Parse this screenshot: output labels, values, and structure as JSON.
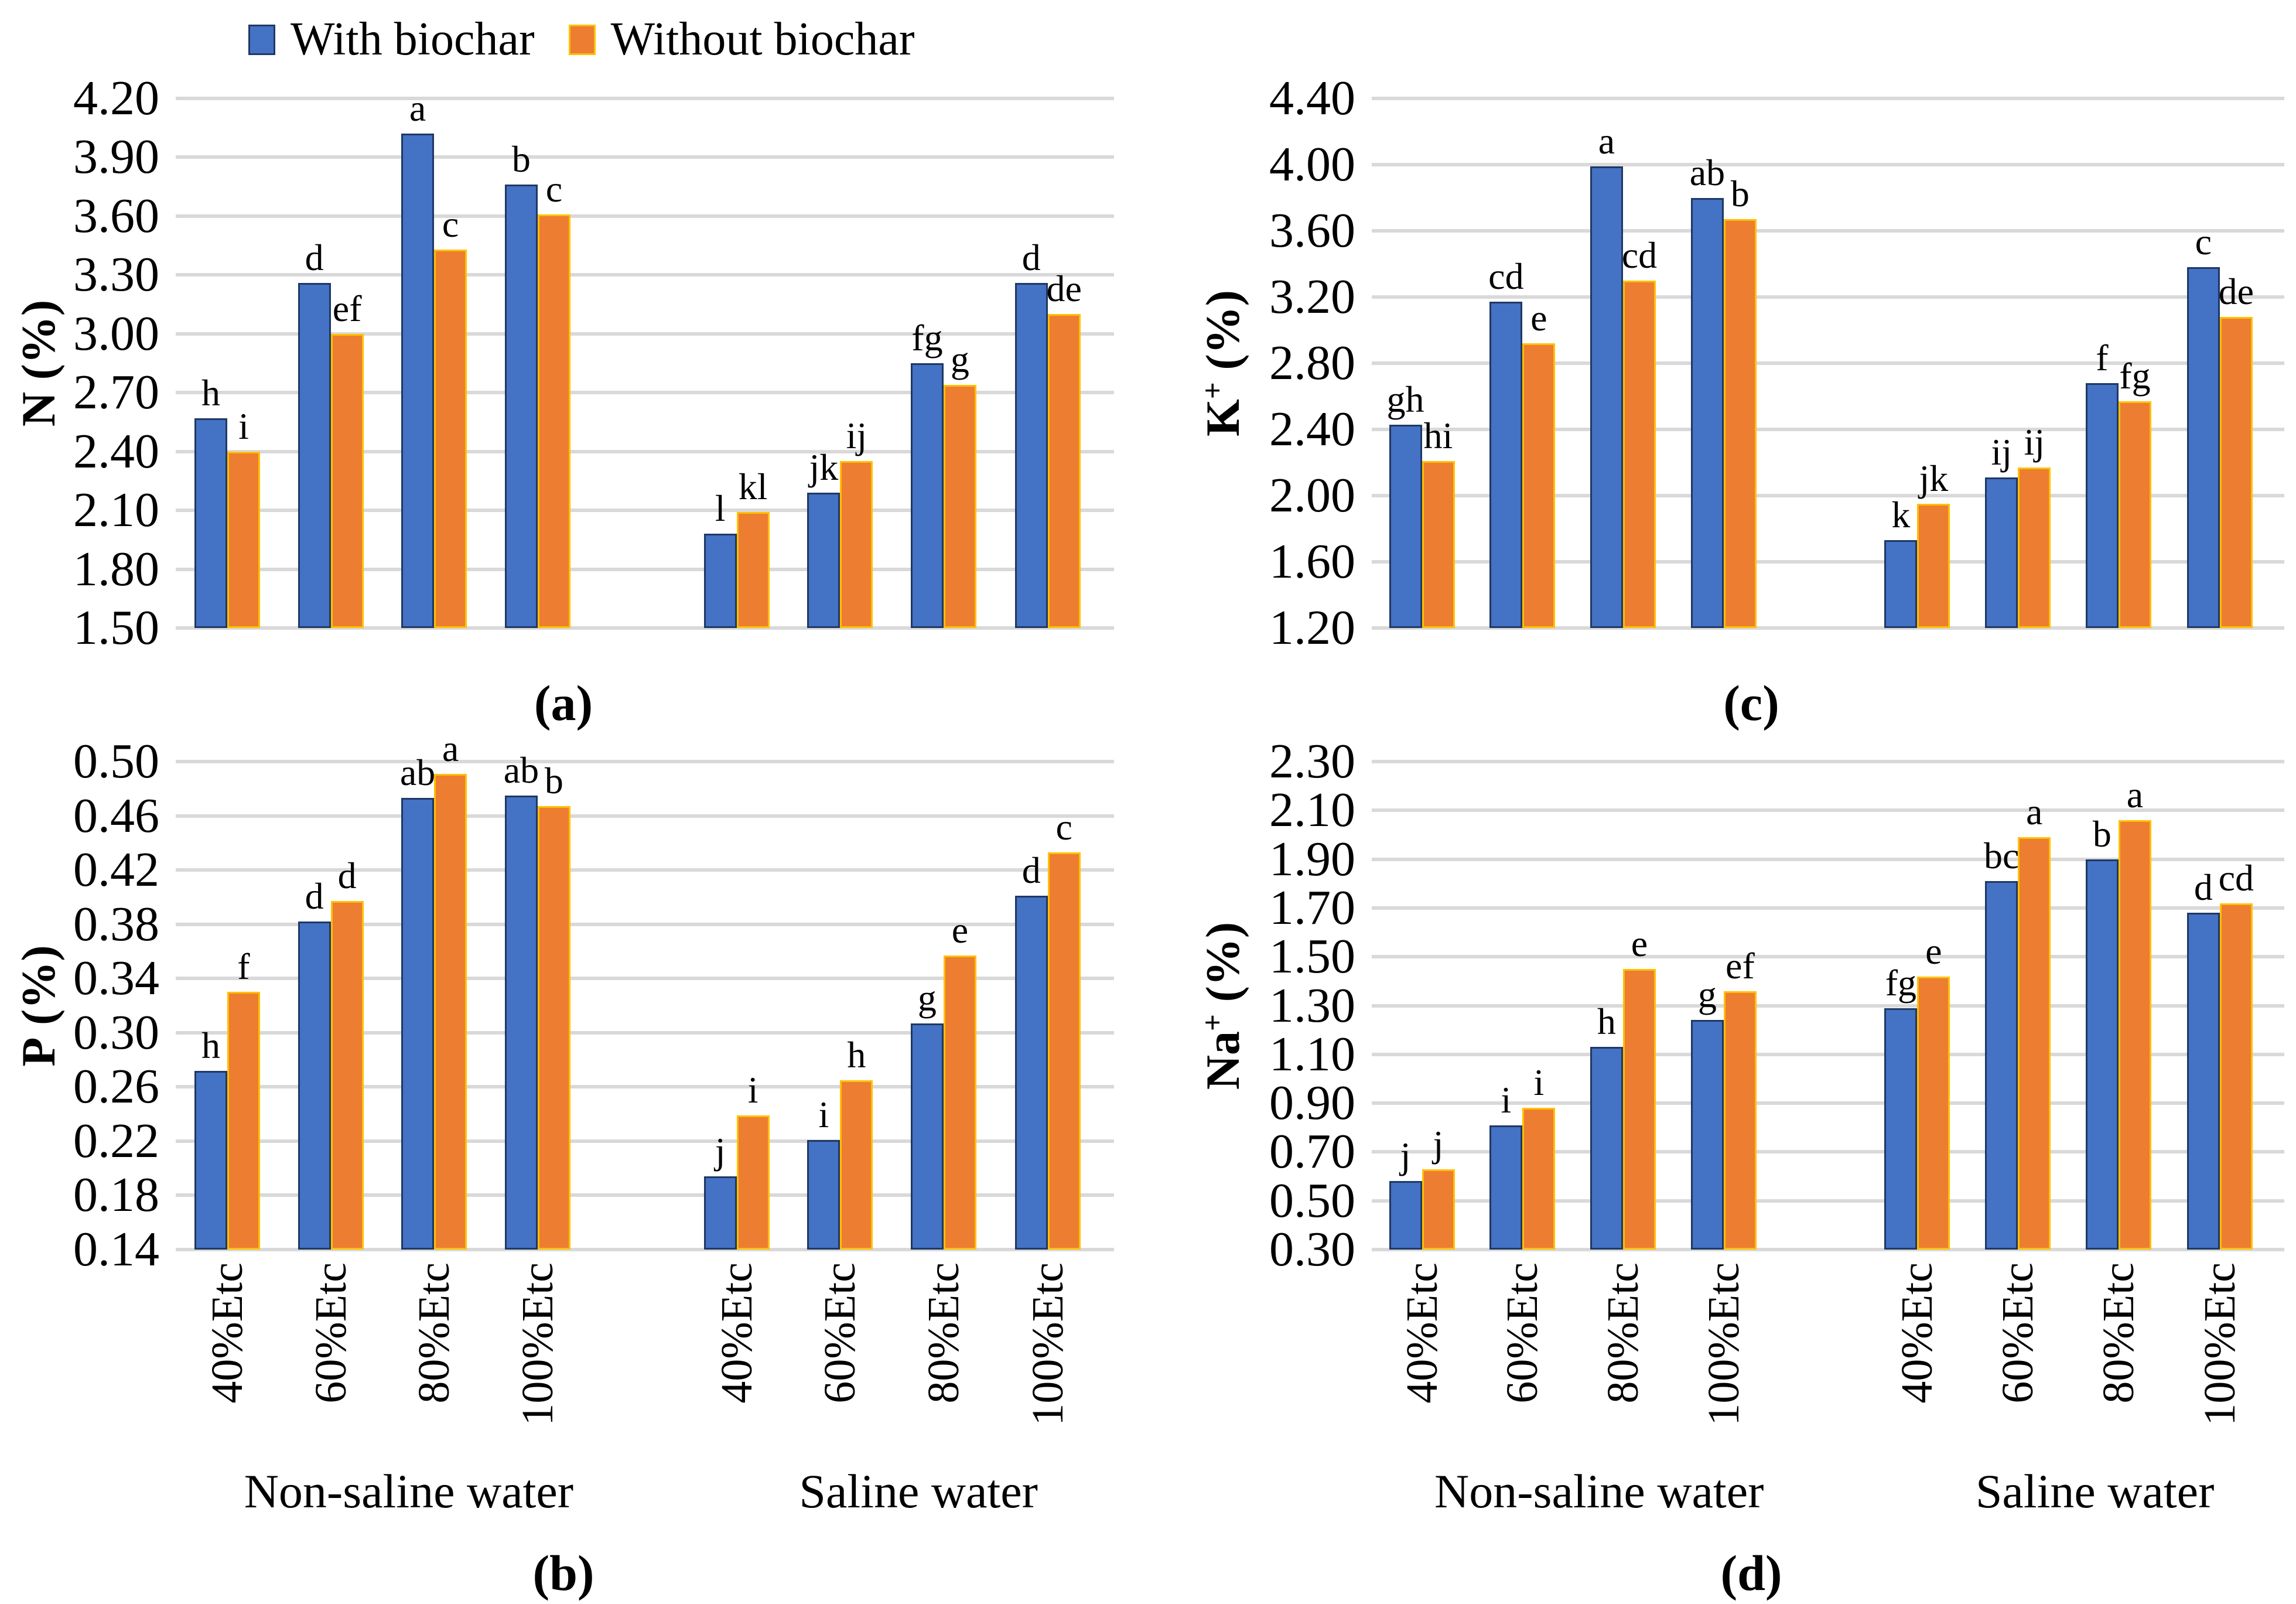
{
  "figure": {
    "legend": [
      {
        "label": "With biochar",
        "color": "#4472C4",
        "border": "#1F3864"
      },
      {
        "label": "Without biochar",
        "color": "#ED7D31",
        "border": "#FFC000"
      }
    ],
    "grid_color": "#D9D9D9",
    "group_labels": [
      "Non-saline water",
      "Saline water"
    ],
    "categories": [
      "40%Etc",
      "60%Etc",
      "80%Etc",
      "100%Etc"
    ]
  },
  "chart_data": [
    {
      "id": "a",
      "type": "bar",
      "caption": "(a)",
      "ylabel": {
        "pre": "N",
        "sup": "",
        "post": " (%)"
      },
      "ylim": [
        1.5,
        4.2
      ],
      "yticks": [
        "4.20",
        "3.90",
        "3.60",
        "3.30",
        "3.00",
        "2.70",
        "2.40",
        "2.10",
        "1.80",
        "1.50"
      ],
      "grid": true,
      "show_x_labels": false,
      "groups": [
        "Non-saline water",
        "Saline water"
      ],
      "categories": [
        "40%Etc",
        "60%Etc",
        "80%Etc",
        "100%Etc"
      ],
      "series": [
        {
          "name": "With biochar",
          "values": [
            2.57,
            3.26,
            4.02,
            3.76,
            1.98,
            2.19,
            2.85,
            3.26
          ],
          "letters": [
            "h",
            "d",
            "a",
            "b",
            "l",
            "jk",
            "fg",
            "d"
          ]
        },
        {
          "name": "Without biochar",
          "values": [
            2.4,
            3.0,
            3.43,
            3.61,
            2.09,
            2.35,
            2.74,
            3.1
          ],
          "letters": [
            "i",
            "ef",
            "c",
            "c",
            "kl",
            "ij",
            "g",
            "de"
          ]
        }
      ]
    },
    {
      "id": "b",
      "type": "bar",
      "caption": "(b)",
      "ylabel": {
        "pre": "P",
        "sup": "",
        "post": " (%)"
      },
      "ylim": [
        0.14,
        0.5
      ],
      "yticks": [
        "0.50",
        "0.46",
        "0.42",
        "0.38",
        "0.34",
        "0.30",
        "0.26",
        "0.22",
        "0.18",
        "0.14"
      ],
      "grid": true,
      "show_x_labels": true,
      "groups": [
        "Non-saline water",
        "Saline water"
      ],
      "categories": [
        "40%Etc",
        "60%Etc",
        "80%Etc",
        "100%Etc"
      ],
      "series": [
        {
          "name": "With biochar",
          "values": [
            0.272,
            0.382,
            0.473,
            0.475,
            0.194,
            0.221,
            0.307,
            0.401
          ],
          "letters": [
            "h",
            "d",
            "ab",
            "ab",
            "j",
            "i",
            "g",
            "d"
          ]
        },
        {
          "name": "Without biochar",
          "values": [
            0.33,
            0.397,
            0.491,
            0.467,
            0.239,
            0.265,
            0.357,
            0.433
          ],
          "letters": [
            "f",
            "d",
            "a",
            "b",
            "i",
            "h",
            "e",
            "c"
          ]
        }
      ]
    },
    {
      "id": "c",
      "type": "bar",
      "caption": "(c)",
      "ylabel": {
        "pre": "K",
        "sup": "+",
        "post": " (%)"
      },
      "ylim": [
        1.2,
        4.4
      ],
      "yticks": [
        "4.40",
        "4.00",
        "3.60",
        "3.20",
        "2.80",
        "2.40",
        "2.00",
        "1.60",
        "1.20"
      ],
      "grid": true,
      "show_x_labels": false,
      "groups": [
        "Non-saline water",
        "Saline water"
      ],
      "categories": [
        "40%Etc",
        "60%Etc",
        "80%Etc",
        "100%Etc"
      ],
      "series": [
        {
          "name": "With biochar",
          "values": [
            2.43,
            3.17,
            3.99,
            3.8,
            1.73,
            2.11,
            2.68,
            3.38
          ],
          "letters": [
            "gh",
            "cd",
            "a",
            "ab",
            "k",
            "ij",
            "f",
            "c"
          ]
        },
        {
          "name": "Without biochar",
          "values": [
            2.21,
            2.92,
            3.3,
            3.67,
            1.95,
            2.17,
            2.57,
            3.08
          ],
          "letters": [
            "hi",
            "e",
            "cd",
            "b",
            "jk",
            "ij",
            "fg",
            "de"
          ]
        }
      ]
    },
    {
      "id": "d",
      "type": "bar",
      "caption": "(d)",
      "ylabel": {
        "pre": "Na",
        "sup": "+",
        "post": " (%)"
      },
      "ylim": [
        0.3,
        2.3
      ],
      "yticks": [
        "2.30",
        "2.10",
        "1.90",
        "1.70",
        "1.50",
        "1.30",
        "1.10",
        "0.90",
        "0.70",
        "0.50",
        "0.30"
      ],
      "grid": true,
      "show_x_labels": true,
      "groups": [
        "Non-saline water",
        "Saline water"
      ],
      "categories": [
        "40%Etc",
        "60%Etc",
        "80%Etc",
        "100%Etc"
      ],
      "series": [
        {
          "name": "With biochar",
          "values": [
            0.58,
            0.81,
            1.13,
            1.24,
            1.29,
            1.81,
            1.9,
            1.68
          ],
          "letters": [
            "j",
            "i",
            "h",
            "g",
            "fg",
            "bc",
            "b",
            "d"
          ]
        },
        {
          "name": "Without biochar",
          "values": [
            0.63,
            0.88,
            1.45,
            1.36,
            1.42,
            1.99,
            2.06,
            1.72
          ],
          "letters": [
            "j",
            "i",
            "e",
            "ef",
            "e",
            "a",
            "a",
            "cd"
          ]
        }
      ]
    }
  ]
}
